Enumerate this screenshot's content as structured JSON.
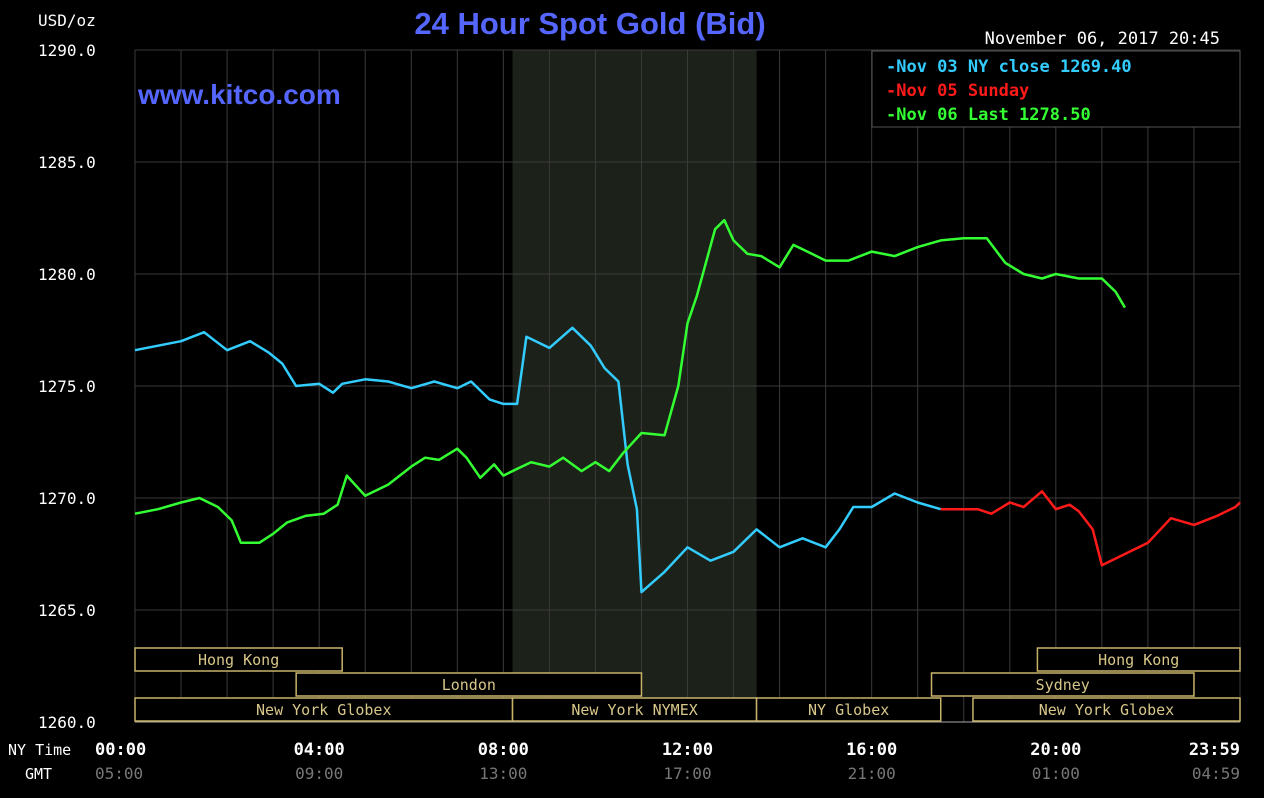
{
  "chart_data": {
    "type": "line",
    "title": "24 Hour Spot Gold (Bid)",
    "unit_label": "USD/oz",
    "watermark": "www.kitco.com",
    "timestamp": "November 06, 2017 20:45",
    "ylim": [
      1260,
      1290
    ],
    "y_ticks": [
      "1260.0",
      "1265.0",
      "1270.0",
      "1275.0",
      "1280.0",
      "1285.0",
      "1290.0"
    ],
    "x_axis": {
      "ny_label": "NY Time",
      "gmt_label": "GMT",
      "ny_ticks": [
        "00:00",
        "04:00",
        "08:00",
        "12:00",
        "16:00",
        "20:00",
        "23:59"
      ],
      "gmt_ticks": [
        "05:00",
        "09:00",
        "13:00",
        "17:00",
        "21:00",
        "01:00",
        "04:59"
      ]
    },
    "grid": true,
    "legend_position": "top-right",
    "legend": [
      {
        "text": "-Nov 03 NY close 1269.40",
        "color": "#33ccff"
      },
      {
        "text": "-Nov 05 Sunday",
        "color": "#ff1a1a"
      },
      {
        "text": "-Nov 06 Last 1278.50",
        "color": "#33ff33"
      }
    ],
    "nymex_shaded_hours": [
      8.2,
      13.5
    ],
    "sessions": [
      {
        "name": "Hong Kong",
        "row": 0,
        "start_h": 0.0,
        "end_h": 4.5
      },
      {
        "name": "Hong Kong",
        "row": 0,
        "start_h": 19.6,
        "end_h": 24.0
      },
      {
        "name": "London",
        "row": 1,
        "start_h": 3.5,
        "end_h": 11.0
      },
      {
        "name": "Sydney",
        "row": 1,
        "start_h": 17.3,
        "end_h": 23.0
      },
      {
        "name": "New York Globex",
        "row": 2,
        "start_h": 0.0,
        "end_h": 8.2
      },
      {
        "name": "New York NYMEX",
        "row": 2,
        "start_h": 8.2,
        "end_h": 13.5
      },
      {
        "name": "NY Globex",
        "row": 2,
        "start_h": 13.5,
        "end_h": 17.5
      },
      {
        "name": "New York Globex",
        "row": 2,
        "start_h": 18.2,
        "end_h": 24.0
      }
    ],
    "series": [
      {
        "name": "Nov 03 NY close 1269.40",
        "color": "#33ccff",
        "points": [
          [
            0,
            1276.6
          ],
          [
            0.5,
            1276.8
          ],
          [
            1,
            1277.0
          ],
          [
            1.5,
            1277.4
          ],
          [
            2,
            1276.6
          ],
          [
            2.5,
            1277.0
          ],
          [
            2.9,
            1276.5
          ],
          [
            3.2,
            1276.0
          ],
          [
            3.5,
            1275.0
          ],
          [
            4,
            1275.1
          ],
          [
            4.3,
            1274.7
          ],
          [
            4.5,
            1275.1
          ],
          [
            5,
            1275.3
          ],
          [
            5.5,
            1275.2
          ],
          [
            6,
            1274.9
          ],
          [
            6.5,
            1275.2
          ],
          [
            7,
            1274.9
          ],
          [
            7.3,
            1275.2
          ],
          [
            7.7,
            1274.4
          ],
          [
            8,
            1274.2
          ],
          [
            8.3,
            1274.2
          ],
          [
            8.5,
            1277.2
          ],
          [
            9,
            1276.7
          ],
          [
            9.5,
            1277.6
          ],
          [
            9.9,
            1276.8
          ],
          [
            10.2,
            1275.8
          ],
          [
            10.5,
            1275.2
          ],
          [
            10.7,
            1271.5
          ],
          [
            10.9,
            1269.5
          ],
          [
            11.0,
            1265.8
          ],
          [
            11.5,
            1266.7
          ],
          [
            12,
            1267.8
          ],
          [
            12.5,
            1267.2
          ],
          [
            13,
            1267.6
          ],
          [
            13.5,
            1268.6
          ],
          [
            14,
            1267.8
          ],
          [
            14.5,
            1268.2
          ],
          [
            15,
            1267.8
          ],
          [
            15.3,
            1268.6
          ],
          [
            15.6,
            1269.6
          ],
          [
            16,
            1269.6
          ],
          [
            16.5,
            1270.2
          ],
          [
            17,
            1269.8
          ],
          [
            17.5,
            1269.5
          ]
        ]
      },
      {
        "name": "Nov 05 Sunday",
        "color": "#ff1a1a",
        "points": [
          [
            17.5,
            1269.5
          ],
          [
            18,
            1269.5
          ],
          [
            18.3,
            1269.5
          ],
          [
            18.6,
            1269.3
          ],
          [
            19,
            1269.8
          ],
          [
            19.3,
            1269.6
          ],
          [
            19.7,
            1270.3
          ],
          [
            20,
            1269.5
          ],
          [
            20.3,
            1269.7
          ],
          [
            20.5,
            1269.4
          ],
          [
            20.8,
            1268.6
          ],
          [
            21,
            1267.0
          ],
          [
            21.5,
            1267.5
          ],
          [
            22,
            1268.0
          ],
          [
            22.5,
            1269.1
          ],
          [
            23,
            1268.8
          ],
          [
            23.5,
            1269.2
          ],
          [
            23.9,
            1269.6
          ],
          [
            24.0,
            1269.8
          ]
        ]
      },
      {
        "name": "Nov 06 Last 1278.50",
        "color": "#33ff33",
        "points": [
          [
            0,
            1269.3
          ],
          [
            0.5,
            1269.5
          ],
          [
            1,
            1269.8
          ],
          [
            1.4,
            1270.0
          ],
          [
            1.8,
            1269.6
          ],
          [
            2.1,
            1269.0
          ],
          [
            2.3,
            1268.0
          ],
          [
            2.7,
            1268.0
          ],
          [
            3.0,
            1268.4
          ],
          [
            3.3,
            1268.9
          ],
          [
            3.7,
            1269.2
          ],
          [
            4.1,
            1269.3
          ],
          [
            4.4,
            1269.7
          ],
          [
            4.6,
            1271.0
          ],
          [
            5,
            1270.1
          ],
          [
            5.5,
            1270.6
          ],
          [
            6,
            1271.4
          ],
          [
            6.3,
            1271.8
          ],
          [
            6.6,
            1271.7
          ],
          [
            7,
            1272.2
          ],
          [
            7.2,
            1271.8
          ],
          [
            7.5,
            1270.9
          ],
          [
            7.8,
            1271.5
          ],
          [
            8,
            1271.0
          ],
          [
            8.3,
            1271.3
          ],
          [
            8.6,
            1271.6
          ],
          [
            9,
            1271.4
          ],
          [
            9.3,
            1271.8
          ],
          [
            9.7,
            1271.2
          ],
          [
            10,
            1271.6
          ],
          [
            10.3,
            1271.2
          ],
          [
            10.6,
            1272.0
          ],
          [
            11,
            1272.9
          ],
          [
            11.5,
            1272.8
          ],
          [
            11.8,
            1275.0
          ],
          [
            12,
            1277.8
          ],
          [
            12.2,
            1279.0
          ],
          [
            12.4,
            1280.5
          ],
          [
            12.6,
            1282.0
          ],
          [
            12.8,
            1282.4
          ],
          [
            13,
            1281.5
          ],
          [
            13.3,
            1280.9
          ],
          [
            13.6,
            1280.8
          ],
          [
            14.0,
            1280.3
          ],
          [
            14.3,
            1281.3
          ],
          [
            14.7,
            1280.9
          ],
          [
            15,
            1280.6
          ],
          [
            15.5,
            1280.6
          ],
          [
            16,
            1281.0
          ],
          [
            16.5,
            1280.8
          ],
          [
            17,
            1281.2
          ],
          [
            17.5,
            1281.5
          ],
          [
            18,
            1281.6
          ],
          [
            18.5,
            1281.6
          ],
          [
            18.9,
            1280.5
          ],
          [
            19.3,
            1280.0
          ],
          [
            19.7,
            1279.8
          ],
          [
            20,
            1280.0
          ],
          [
            20.5,
            1279.8
          ],
          [
            21,
            1279.8
          ],
          [
            21.3,
            1279.2
          ],
          [
            21.5,
            1278.5
          ]
        ]
      }
    ]
  }
}
